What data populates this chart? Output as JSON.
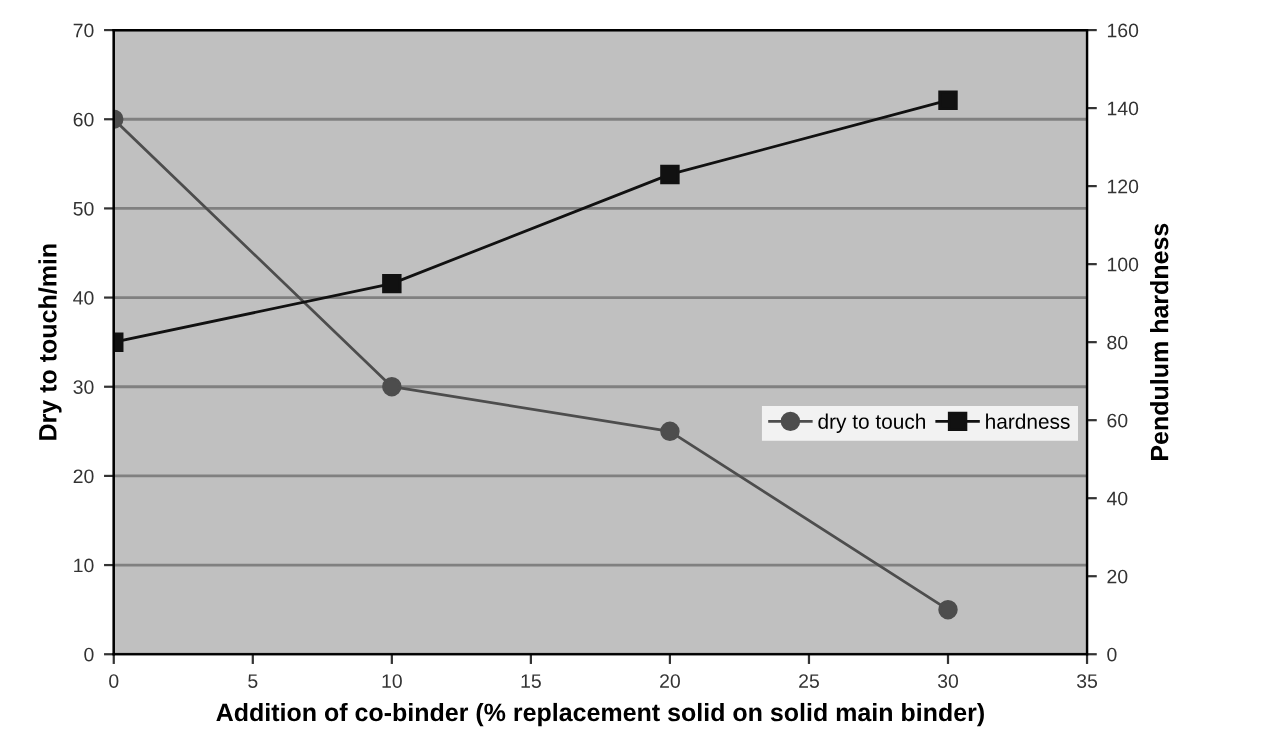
{
  "chart_data": {
    "type": "line",
    "xlabel": "Addition of co-binder (% replacement solid on solid main binder)",
    "ylabel": "Dry to touch/min",
    "y2label": "Pendulum hardness",
    "x": [
      0,
      10,
      20,
      30
    ],
    "series": [
      {
        "name": "dry to touch",
        "color": "#4d4d4d",
        "values": [
          60,
          30,
          25,
          5
        ],
        "marker": "circle"
      },
      {
        "name": "hardness",
        "color": "#111111",
        "values": [
          80,
          95,
          123,
          142
        ],
        "marker": "square",
        "axis": "y2"
      }
    ],
    "xlim": [
      0,
      35
    ],
    "xticks": [
      0,
      5,
      10,
      15,
      20,
      25,
      30,
      35
    ],
    "ylim": [
      0,
      70
    ],
    "yticks": [
      0,
      10,
      20,
      30,
      40,
      50,
      60,
      70
    ],
    "y2lim": [
      0,
      160
    ],
    "y2ticks": [
      0,
      20,
      40,
      60,
      80,
      100,
      120,
      140,
      160
    ],
    "grid": "y",
    "legend": "right",
    "line_style": "solid"
  }
}
